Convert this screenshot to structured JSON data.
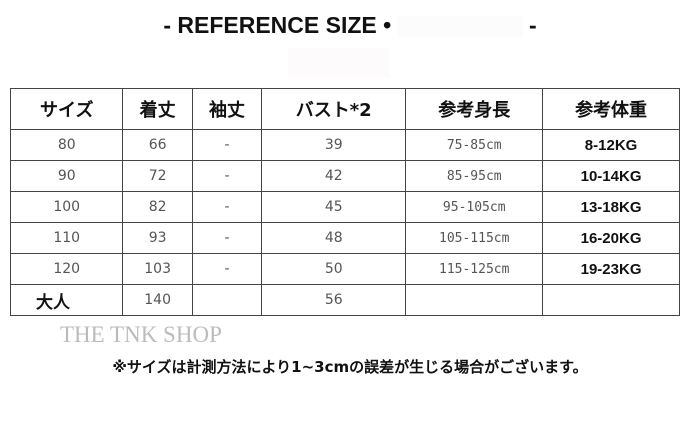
{
  "title": {
    "left": "- REFERENCE SIZE •",
    "right": "-"
  },
  "watermark": "THE TNK SHOP",
  "table": {
    "headers": [
      "サイズ",
      "着丈",
      "袖丈",
      "バスト*2",
      "参考身長",
      "参考体重"
    ],
    "rows": [
      [
        "80",
        "66",
        "-",
        "39",
        "75-85cm",
        "8-12KG"
      ],
      [
        "90",
        "72",
        "-",
        "42",
        "85-95cm",
        "10-14KG"
      ],
      [
        "100",
        "82",
        "-",
        "45",
        "95-105cm",
        "13-18KG"
      ],
      [
        "110",
        "93",
        "-",
        "48",
        "105-115cm",
        "16-20KG"
      ],
      [
        "120",
        "103",
        "-",
        "50",
        "115-125cm",
        "19-23KG"
      ],
      [
        "大人",
        "140",
        "",
        "56",
        "",
        ""
      ]
    ]
  },
  "note": "※サイズは計測方法により1~3cmの誤差が生じる場合がございます。"
}
